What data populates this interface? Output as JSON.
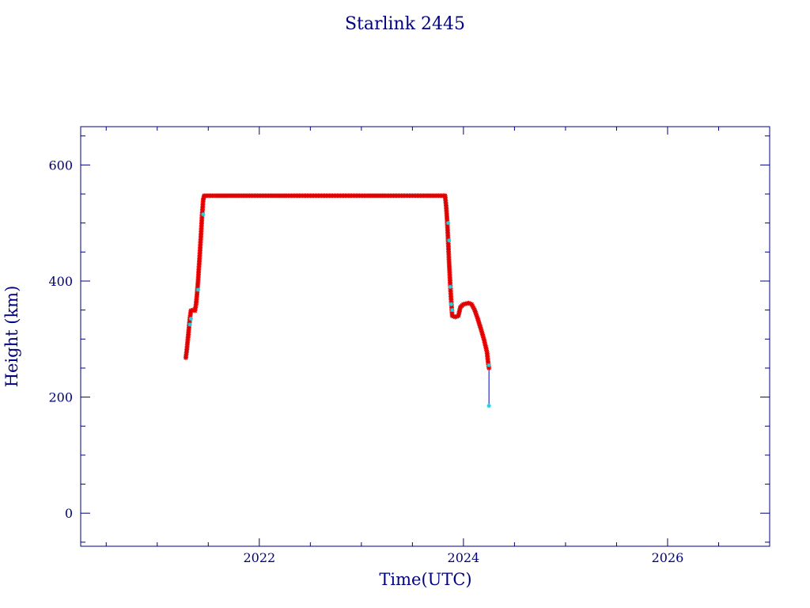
{
  "chart_data": {
    "type": "scatter",
    "title": "Starlink 2445",
    "xlabel": "Time(UTC)",
    "ylabel": "Height (km)",
    "xlim": [
      2020.25,
      2027.0
    ],
    "ylim": [
      -57,
      666
    ],
    "x_ticks": [
      2022,
      2024,
      2026
    ],
    "x_tick_labels": [
      "2022",
      "2024",
      "2026"
    ],
    "y_ticks": [
      0,
      200,
      400,
      600
    ],
    "y_tick_labels": [
      "0",
      "200",
      "400",
      "600"
    ],
    "grid": false,
    "colors": {
      "axis": "#000080",
      "primary": "#e00000",
      "secondary": "#20d0e0",
      "line": "#0000cc"
    },
    "series": [
      {
        "role": "red-stars",
        "points": [
          [
            2021.28,
            268
          ],
          [
            2021.29,
            282
          ],
          [
            2021.3,
            300
          ],
          [
            2021.31,
            318
          ],
          [
            2021.32,
            336
          ],
          [
            2021.33,
            349
          ],
          [
            2021.35,
            350
          ],
          [
            2021.37,
            349
          ],
          [
            2021.38,
            360
          ],
          [
            2021.39,
            378
          ],
          [
            2021.4,
            400
          ],
          [
            2021.41,
            428
          ],
          [
            2021.42,
            455
          ],
          [
            2021.43,
            485
          ],
          [
            2021.44,
            515
          ],
          [
            2021.45,
            540
          ],
          [
            2021.46,
            547
          ],
          [
            2022.0,
            547
          ],
          [
            2022.5,
            547
          ],
          [
            2023.0,
            547
          ],
          [
            2023.5,
            547
          ],
          [
            2023.82,
            547
          ],
          [
            2023.83,
            530
          ],
          [
            2023.84,
            505
          ],
          [
            2023.85,
            470
          ],
          [
            2023.86,
            430
          ],
          [
            2023.87,
            395
          ],
          [
            2023.88,
            365
          ],
          [
            2023.89,
            340
          ],
          [
            2023.92,
            338
          ],
          [
            2023.95,
            340
          ],
          [
            2023.97,
            355
          ],
          [
            2024.0,
            360
          ],
          [
            2024.05,
            362
          ],
          [
            2024.08,
            360
          ],
          [
            2024.11,
            350
          ],
          [
            2024.14,
            335
          ],
          [
            2024.17,
            318
          ],
          [
            2024.2,
            300
          ],
          [
            2024.23,
            278
          ],
          [
            2024.24,
            262
          ],
          [
            2024.25,
            250
          ]
        ]
      },
      {
        "role": "cyan-stars",
        "points": [
          [
            2021.32,
            325
          ],
          [
            2021.33,
            335
          ],
          [
            2021.4,
            385
          ],
          [
            2021.45,
            515
          ],
          [
            2023.85,
            500
          ],
          [
            2023.86,
            470
          ],
          [
            2023.87,
            390
          ],
          [
            2023.88,
            360
          ],
          [
            2023.89,
            350
          ],
          [
            2024.25,
            255
          ],
          [
            2024.25,
            185
          ]
        ]
      }
    ],
    "drop_line": {
      "x": 2024.25,
      "y_from": 250,
      "y_to": 185
    }
  }
}
